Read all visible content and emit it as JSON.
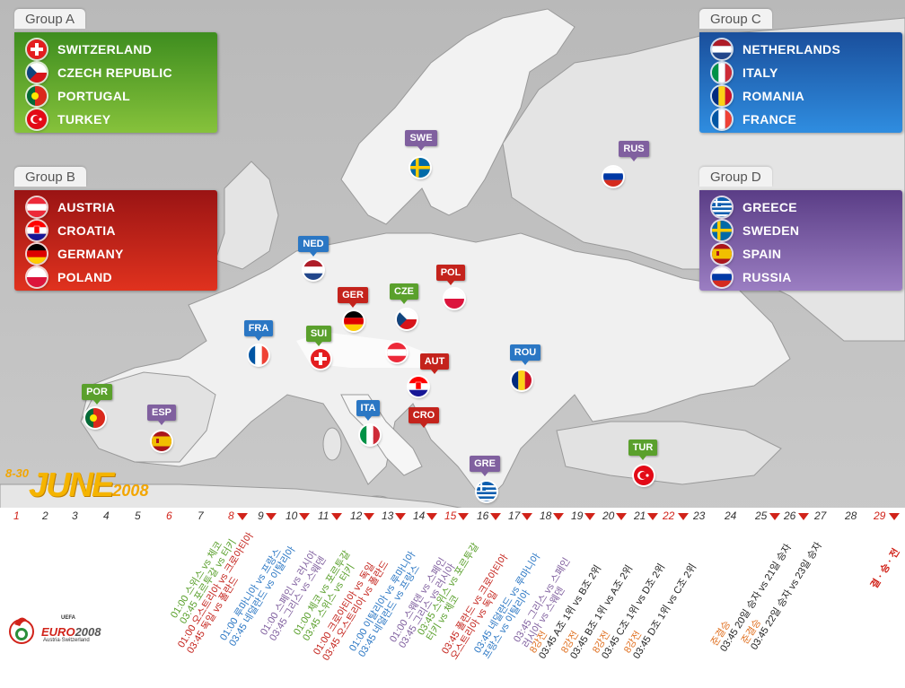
{
  "groups": {
    "a": {
      "title": "Group A",
      "teams": [
        "SWITZERLAND",
        "CZECH REPUBLIC",
        "PORTUGAL",
        "TURKEY"
      ]
    },
    "b": {
      "title": "Group B",
      "teams": [
        "AUSTRIA",
        "CROATIA",
        "GERMANY",
        "POLAND"
      ]
    },
    "c": {
      "title": "Group C",
      "teams": [
        "NETHERLANDS",
        "ITALY",
        "ROMANIA",
        "FRANCE"
      ]
    },
    "d": {
      "title": "Group D",
      "teams": [
        "GREECE",
        "SWEDEN",
        "SPAIN",
        "RUSSIA"
      ]
    }
  },
  "markers": [
    "SWE",
    "RUS",
    "NED",
    "POL",
    "GER",
    "CZE",
    "FRA",
    "SUI",
    "AUT",
    "ROU",
    "CRO",
    "ITA",
    "POR",
    "ESP",
    "GRE",
    "TUR"
  ],
  "title": {
    "dates": "8-30",
    "month": "JUNE",
    "year": "2008"
  },
  "days": [
    "1",
    "2",
    "3",
    "4",
    "5",
    "6",
    "7",
    "8",
    "9",
    "10",
    "11",
    "12",
    "13",
    "14",
    "15",
    "16",
    "17",
    "18",
    "19",
    "20",
    "21",
    "22",
    "23",
    "24",
    "25",
    "26",
    "27",
    "28",
    "29"
  ],
  "fixtures": {
    "d7": [
      "01:00 스위스 vs 체코",
      "03:45 포르투갈 vs 터키"
    ],
    "d8": [
      "01:00 오스트리아 vs 크로아티아",
      "03:45 독일 vs 폴란드"
    ],
    "d9": [
      "01:00 루마니아 vs 프랑스",
      "03:45 네덜란드 vs 이탈리아"
    ],
    "d10": [
      "01:00 스페인 vs 러시아",
      "03:45 그리스 vs 스웨덴"
    ],
    "d11": [
      "01:00 체코 vs 포르투갈",
      "03:45 스위스 vs 터키"
    ],
    "d12": [
      "01:00 크로아티아 vs 독일",
      "03:45 오스트리아 vs 폴란드"
    ],
    "d13": [
      "01:00 이탈리아 vs 루마니아",
      "03:45 네덜란드 vs 프랑스"
    ],
    "d14": [
      "01:00 스웨덴 vs 스페인",
      "03:45 그리스 vs 러시아"
    ],
    "d15": [
      "03:45 스위스 vs 포르투갈",
      "터키 vs 체코"
    ],
    "d16": [
      "03:45 폴란드 vs 크로아티아",
      "오스트리아 vs 독일"
    ],
    "d17": [
      "03:45 네덜란드 vs 루마니아",
      "프랑스 vs 이탈리아"
    ],
    "d18": [
      "03:45 그리스 vs 스페인",
      "러시아 vs 스웨덴"
    ],
    "d19": [
      "8강전",
      "03:45 A조 1위 vs B조 2위"
    ],
    "d20": [
      "8강전",
      "03:45 B조 1위 vs A조 2위"
    ],
    "d21": [
      "8강전",
      "03:45 C조 1위 vs D조 2위"
    ],
    "d22": [
      "8강전",
      "03:45 D조 1위 vs C조 2위"
    ],
    "d25": [
      "준결승",
      "03:45 20일 승자 vs 21일 승자"
    ],
    "d26": [
      "준결승",
      "03:45 22일 승자 vs 23일 승자"
    ],
    "d29": [
      "결 · 승 · 전"
    ]
  },
  "logo": {
    "uefa": "UEFA",
    "name": "EURO",
    "year": "2008",
    "hosts": "Austria·Switzerland"
  },
  "colors": {
    "groupA": "#5aa02c",
    "groupB": "#c4231c",
    "groupC": "#2b77c4",
    "groupD": "#80609f",
    "quarter": "#e07020",
    "final": "#d1231a"
  }
}
